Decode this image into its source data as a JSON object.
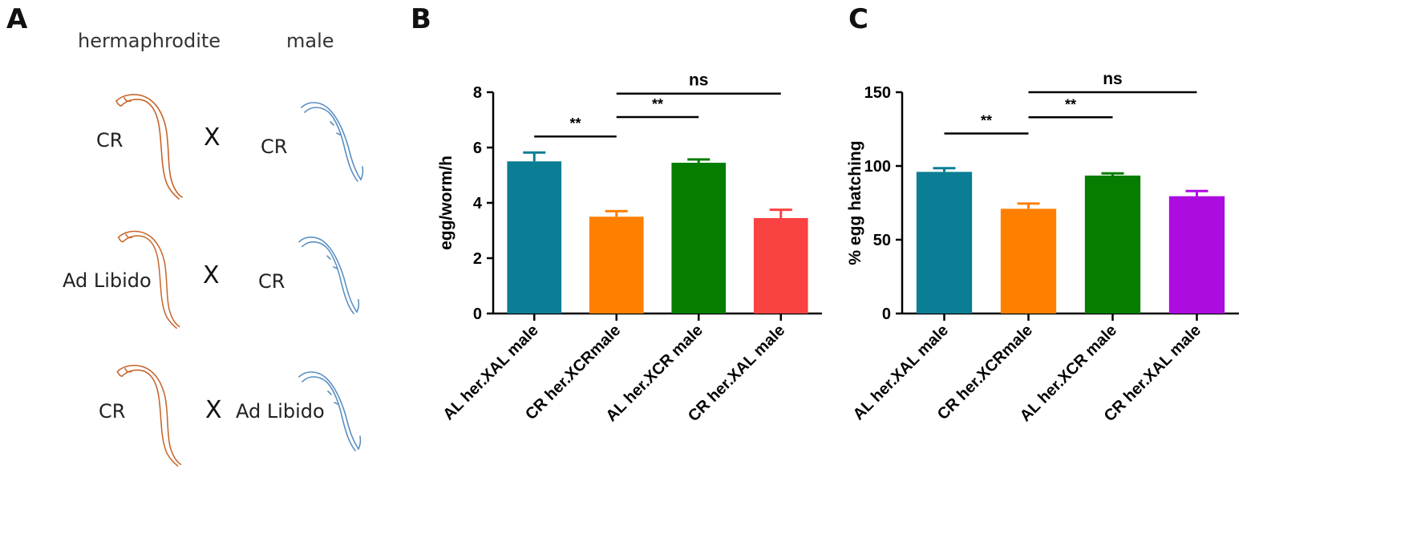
{
  "panel_a": {
    "letter": "A",
    "column_headers": {
      "left": "hermaphrodite",
      "right": "male"
    },
    "cross_symbol": "X",
    "rows": [
      {
        "hermaphrodite": "CR",
        "male": "CR"
      },
      {
        "hermaphrodite": "Ad Libido",
        "male": "CR"
      },
      {
        "hermaphrodite": "CR",
        "male": "Ad Libido"
      }
    ],
    "colors": {
      "hermaphrodite_worm": "#c8642a",
      "male_worm": "#5b8fc2"
    },
    "icons": [
      "hermaphrodite-worm-icon",
      "male-worm-icon"
    ]
  },
  "chart_data": [
    {
      "panel": "B",
      "type": "bar",
      "title": "",
      "xlabel": "",
      "ylabel": "egg/worm/h",
      "ylim": [
        0,
        8
      ],
      "yticks": [
        0,
        2,
        4,
        6,
        8
      ],
      "categories": [
        "AL her.XAL male",
        "CR her.XCRmale",
        "AL her.XCR male",
        "CR her.XAL male"
      ],
      "values": [
        5.5,
        3.5,
        5.45,
        3.45
      ],
      "errors": [
        0.32,
        0.2,
        0.12,
        0.3
      ],
      "colors": [
        "#0b7d94",
        "#ff8000",
        "#047d00",
        "#f94242"
      ],
      "grid": false,
      "annotations": [
        {
          "from": 0,
          "to": 1,
          "label": "**",
          "y": 6.4
        },
        {
          "from": 1,
          "to": 2,
          "label": "**",
          "y": 7.1
        },
        {
          "from": 1,
          "to": 3,
          "label": "ns",
          "y": 7.95
        }
      ]
    },
    {
      "panel": "C",
      "type": "bar",
      "title": "",
      "xlabel": "",
      "ylabel": "% egg hatching",
      "ylim": [
        0,
        150
      ],
      "yticks": [
        0,
        50,
        100,
        150
      ],
      "categories": [
        "AL her.XAL male",
        "CR her.XCRmale",
        "AL her.XCR male",
        "CR her.XAL male"
      ],
      "values": [
        96,
        71,
        93.5,
        79.5
      ],
      "errors": [
        2.5,
        3.5,
        1.5,
        3.5
      ],
      "colors": [
        "#0b7d94",
        "#ff8000",
        "#047d00",
        "#ad0ce0"
      ],
      "grid": false,
      "annotations": [
        {
          "from": 0,
          "to": 1,
          "label": "**",
          "y": 122
        },
        {
          "from": 1,
          "to": 2,
          "label": "**",
          "y": 133
        },
        {
          "from": 1,
          "to": 3,
          "label": "ns",
          "y": 150
        }
      ]
    }
  ]
}
